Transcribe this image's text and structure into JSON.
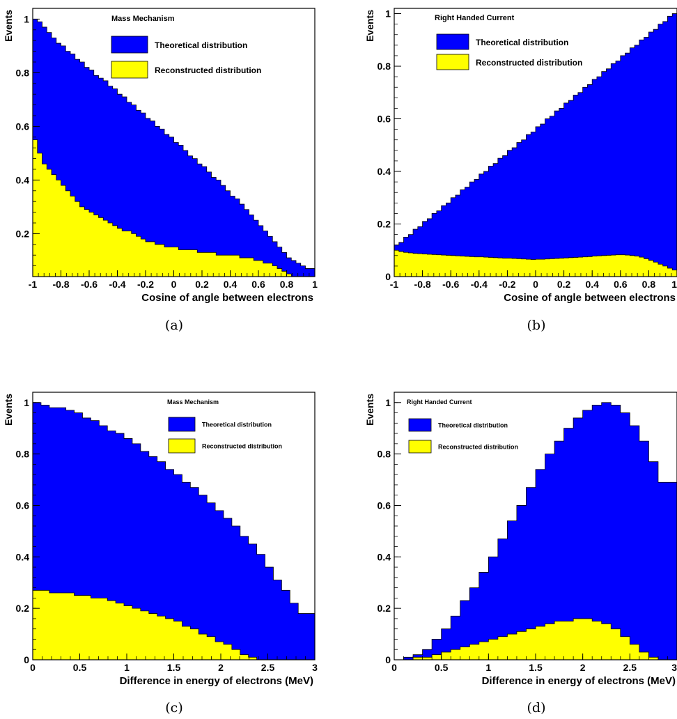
{
  "colors": {
    "theoretical": "#0000ff",
    "reconstructed": "#ffff00",
    "frame": "#000000"
  },
  "chart_data": [
    {
      "type": "bar",
      "caption": "(a)",
      "title": "Mass Mechanism",
      "xlabel": "Cosine of angle between electrons",
      "ylabel": "Events",
      "xlim": [
        -1,
        1
      ],
      "ylim": [
        0.04,
        1.04
      ],
      "xticks": [
        "-1",
        "-0.8",
        "-0.6",
        "-0.4",
        "-0.2",
        "0",
        "0.2",
        "0.4",
        "0.6",
        "0.8",
        "1"
      ],
      "xtick_values": [
        -1,
        -0.8,
        -0.6,
        -0.4,
        -0.2,
        0,
        0.2,
        0.4,
        0.6,
        0.8,
        1
      ],
      "yticks": [
        "1",
        "0.8",
        "0.6",
        "0.4",
        "0.2"
      ],
      "ytick_values": [
        1,
        0.8,
        0.6,
        0.4,
        0.2
      ],
      "legend": [
        "Theoretical distribution",
        "Reconstructed distribution"
      ],
      "legend_placement": "top-center",
      "series": [
        {
          "name": "Theoretical distribution",
          "values": [
            1.0,
            0.99,
            0.97,
            0.95,
            0.93,
            0.91,
            0.9,
            0.88,
            0.87,
            0.85,
            0.84,
            0.82,
            0.81,
            0.79,
            0.78,
            0.77,
            0.75,
            0.74,
            0.72,
            0.71,
            0.69,
            0.68,
            0.66,
            0.65,
            0.63,
            0.62,
            0.6,
            0.59,
            0.57,
            0.56,
            0.54,
            0.53,
            0.51,
            0.49,
            0.48,
            0.46,
            0.45,
            0.43,
            0.41,
            0.4,
            0.38,
            0.36,
            0.34,
            0.33,
            0.31,
            0.29,
            0.27,
            0.25,
            0.23,
            0.21,
            0.19,
            0.17,
            0.15,
            0.13,
            0.11,
            0.1,
            0.09,
            0.08,
            0.07,
            0.07
          ]
        },
        {
          "name": "Reconstructed distribution",
          "values": [
            0.55,
            0.5,
            0.46,
            0.44,
            0.42,
            0.4,
            0.38,
            0.36,
            0.34,
            0.32,
            0.3,
            0.29,
            0.28,
            0.27,
            0.26,
            0.25,
            0.24,
            0.23,
            0.22,
            0.21,
            0.21,
            0.2,
            0.19,
            0.18,
            0.17,
            0.17,
            0.16,
            0.16,
            0.15,
            0.15,
            0.15,
            0.14,
            0.14,
            0.14,
            0.14,
            0.13,
            0.13,
            0.13,
            0.13,
            0.12,
            0.12,
            0.12,
            0.12,
            0.12,
            0.11,
            0.11,
            0.11,
            0.1,
            0.1,
            0.09,
            0.09,
            0.08,
            0.07,
            0.06,
            0.05,
            0.04,
            0.04,
            0.04,
            0.04,
            0.04
          ]
        }
      ]
    },
    {
      "type": "bar",
      "caption": "(b)",
      "title": "Right Handed Current",
      "xlabel": "Cosine of angle between electrons",
      "ylabel": "Events",
      "xlim": [
        -1,
        1
      ],
      "ylim": [
        0,
        1.02
      ],
      "xticks": [
        "-1",
        "-0.8",
        "-0.6",
        "-0.4",
        "-0.2",
        "0",
        "0.2",
        "0.4",
        "0.6",
        "0.8",
        "1"
      ],
      "xtick_values": [
        -1,
        -0.8,
        -0.6,
        -0.4,
        -0.2,
        0,
        0.2,
        0.4,
        0.6,
        0.8,
        1
      ],
      "yticks": [
        "1",
        "0.8",
        "0.6",
        "0.4",
        "0.2",
        "0"
      ],
      "ytick_values": [
        1,
        0.8,
        0.6,
        0.4,
        0.2,
        0
      ],
      "legend": [
        "Theoretical distribution",
        "Reconstructed distribution"
      ],
      "legend_placement": "top-left",
      "series": [
        {
          "name": "Theoretical distribution",
          "values": [
            0.12,
            0.13,
            0.15,
            0.16,
            0.18,
            0.19,
            0.21,
            0.22,
            0.24,
            0.25,
            0.27,
            0.28,
            0.3,
            0.31,
            0.33,
            0.34,
            0.36,
            0.37,
            0.39,
            0.4,
            0.42,
            0.43,
            0.45,
            0.46,
            0.48,
            0.49,
            0.51,
            0.52,
            0.54,
            0.55,
            0.57,
            0.58,
            0.6,
            0.61,
            0.63,
            0.64,
            0.66,
            0.67,
            0.69,
            0.7,
            0.72,
            0.73,
            0.75,
            0.76,
            0.78,
            0.79,
            0.81,
            0.82,
            0.84,
            0.85,
            0.87,
            0.88,
            0.9,
            0.91,
            0.93,
            0.94,
            0.96,
            0.97,
            0.99,
            1.0
          ]
        },
        {
          "name": "Reconstructed distribution",
          "values": [
            0.1,
            0.095,
            0.092,
            0.09,
            0.088,
            0.087,
            0.086,
            0.085,
            0.084,
            0.083,
            0.082,
            0.081,
            0.08,
            0.079,
            0.078,
            0.077,
            0.076,
            0.075,
            0.075,
            0.074,
            0.073,
            0.072,
            0.071,
            0.07,
            0.07,
            0.069,
            0.068,
            0.067,
            0.066,
            0.065,
            0.066,
            0.066,
            0.067,
            0.068,
            0.069,
            0.07,
            0.071,
            0.072,
            0.073,
            0.074,
            0.075,
            0.076,
            0.078,
            0.079,
            0.08,
            0.081,
            0.082,
            0.083,
            0.083,
            0.082,
            0.08,
            0.078,
            0.074,
            0.068,
            0.062,
            0.055,
            0.047,
            0.04,
            0.032,
            0.025
          ]
        }
      ]
    },
    {
      "type": "bar",
      "caption": "(c)",
      "title": "Mass Mechanism",
      "xlabel": "Difference in energy of electrons (MeV)",
      "ylabel": "Events",
      "xlim": [
        0,
        3
      ],
      "ylim": [
        0,
        1.04
      ],
      "xticks": [
        "0",
        "0.5",
        "1",
        "1.5",
        "2",
        "2.5",
        "3"
      ],
      "xtick_values": [
        0,
        0.5,
        1,
        1.5,
        2,
        2.5,
        3
      ],
      "yticks": [
        "1",
        "0.8",
        "0.6",
        "0.4",
        "0.2",
        "0"
      ],
      "ytick_values": [
        1,
        0.8,
        0.6,
        0.4,
        0.2,
        0
      ],
      "legend": [
        "Theoretical distribution",
        "Reconstructed distribution"
      ],
      "legend_placement": "top-right",
      "series": [
        {
          "name": "Theoretical distribution",
          "values": [
            1.0,
            0.99,
            0.98,
            0.98,
            0.97,
            0.96,
            0.94,
            0.93,
            0.91,
            0.89,
            0.88,
            0.86,
            0.84,
            0.81,
            0.79,
            0.77,
            0.74,
            0.72,
            0.69,
            0.67,
            0.64,
            0.61,
            0.58,
            0.55,
            0.52,
            0.48,
            0.45,
            0.41,
            0.36,
            0.31,
            0.27,
            0.22,
            0.18,
            0.18
          ]
        },
        {
          "name": "Reconstructed distribution",
          "values": [
            0.27,
            0.27,
            0.26,
            0.26,
            0.26,
            0.25,
            0.25,
            0.24,
            0.24,
            0.23,
            0.22,
            0.21,
            0.2,
            0.19,
            0.18,
            0.17,
            0.16,
            0.15,
            0.13,
            0.12,
            0.1,
            0.09,
            0.07,
            0.06,
            0.04,
            0.02,
            0.01,
            0.0,
            0.0,
            0.0,
            0.0,
            0.0,
            0.0,
            0.0
          ]
        }
      ]
    },
    {
      "type": "bar",
      "caption": "(d)",
      "title": "Right Handed Current",
      "xlabel": "Difference in energy of electrons (MeV)",
      "ylabel": "Events",
      "xlim": [
        0,
        3
      ],
      "ylim": [
        0,
        1.04
      ],
      "xticks": [
        "0",
        "0.5",
        "1",
        "1.5",
        "2",
        "2.5",
        "3"
      ],
      "xtick_values": [
        0,
        0.5,
        1,
        1.5,
        2,
        2.5,
        3
      ],
      "yticks": [
        "1",
        "0.8",
        "0.6",
        "0.4",
        "0.2",
        "0"
      ],
      "ytick_values": [
        1,
        0.8,
        0.6,
        0.4,
        0.2,
        0
      ],
      "legend": [
        "Theoretical distribution",
        "Reconstructed distribution"
      ],
      "legend_placement": "top-left",
      "series": [
        {
          "name": "Theoretical distribution",
          "values": [
            0.0,
            0.01,
            0.02,
            0.04,
            0.08,
            0.12,
            0.17,
            0.23,
            0.28,
            0.34,
            0.4,
            0.47,
            0.54,
            0.6,
            0.67,
            0.74,
            0.8,
            0.85,
            0.9,
            0.94,
            0.97,
            0.99,
            1.0,
            0.99,
            0.96,
            0.91,
            0.85,
            0.77,
            0.69,
            0.69
          ]
        },
        {
          "name": "Reconstructed distribution",
          "values": [
            0.0,
            0.0,
            0.01,
            0.01,
            0.02,
            0.03,
            0.04,
            0.05,
            0.06,
            0.07,
            0.08,
            0.09,
            0.1,
            0.11,
            0.12,
            0.13,
            0.14,
            0.15,
            0.15,
            0.16,
            0.16,
            0.15,
            0.14,
            0.12,
            0.09,
            0.06,
            0.03,
            0.01,
            0.0,
            0.0
          ]
        }
      ]
    }
  ]
}
